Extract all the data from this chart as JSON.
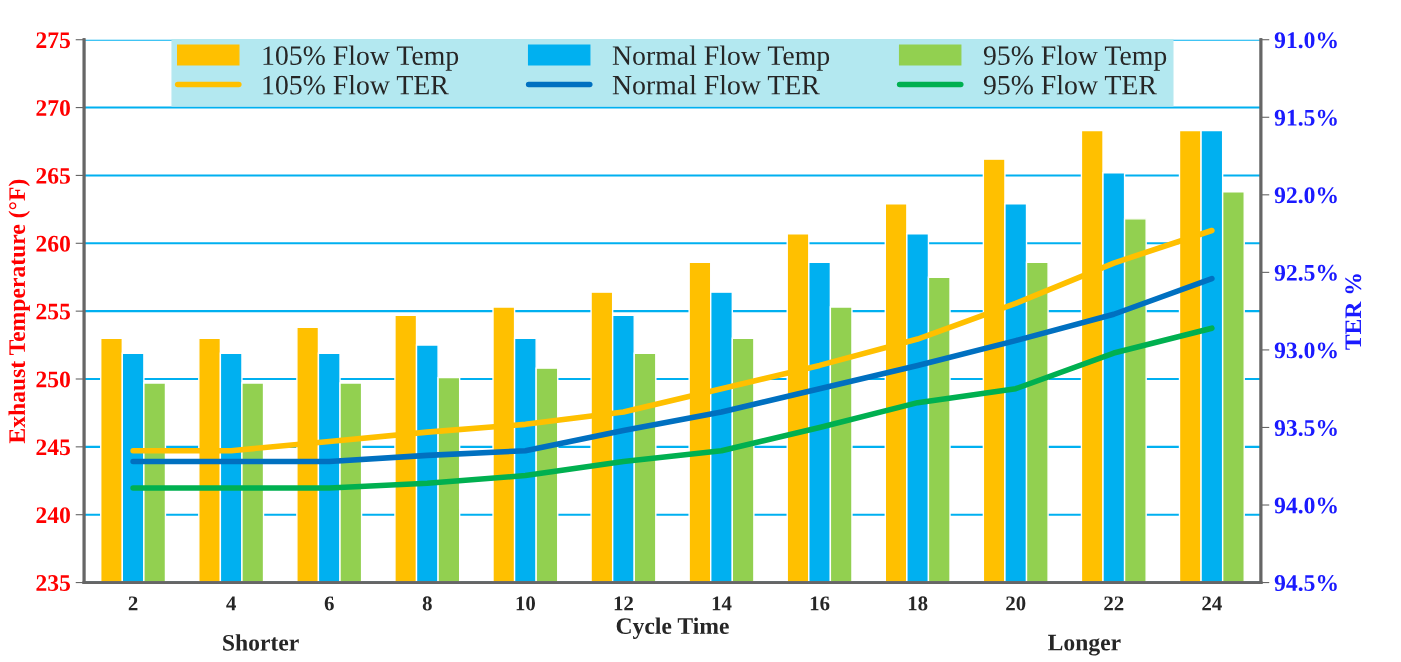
{
  "chart_data": {
    "type": "bar",
    "categories": [
      "2",
      "4",
      "6",
      "8",
      "10",
      "12",
      "14",
      "16",
      "18",
      "20",
      "22",
      "24"
    ],
    "series": [
      {
        "name": "105% Flow Temp",
        "color": "#ffc000",
        "values": [
          253.0,
          253.0,
          253.8,
          254.7,
          255.3,
          256.4,
          258.6,
          260.7,
          262.9,
          266.2,
          268.3,
          268.3
        ]
      },
      {
        "name": "Normal Flow Temp",
        "color": "#00b0f0",
        "values": [
          251.9,
          251.9,
          251.9,
          252.5,
          253.0,
          254.7,
          256.4,
          258.6,
          260.7,
          262.9,
          265.2,
          268.3
        ]
      },
      {
        "name": "95% Flow Temp",
        "color": "#92d050",
        "values": [
          249.7,
          249.7,
          249.7,
          250.1,
          250.8,
          251.9,
          253.0,
          255.3,
          257.5,
          258.6,
          261.8,
          263.8
        ]
      },
      {
        "name": "105% Flow TER",
        "type": "line",
        "axis": "y2",
        "color": "#ffc000",
        "values": [
          93.65,
          93.65,
          93.59,
          93.53,
          93.48,
          93.4,
          93.25,
          93.1,
          92.93,
          92.7,
          92.44,
          92.23
        ]
      },
      {
        "name": "Normal Flow TER",
        "type": "line",
        "axis": "y2",
        "color": "#0070c0",
        "values": [
          93.72,
          93.72,
          93.72,
          93.68,
          93.65,
          93.52,
          93.4,
          93.25,
          93.1,
          92.94,
          92.77,
          92.54
        ]
      },
      {
        "name": "95% Flow TER",
        "type": "line",
        "axis": "y2",
        "color": "#00b050",
        "values": [
          93.89,
          93.89,
          93.89,
          93.86,
          93.81,
          93.72,
          93.65,
          93.5,
          93.34,
          93.25,
          93.02,
          92.86
        ]
      }
    ],
    "xlabel": "Cycle Time",
    "ylabel": "Exhaust Temperature (°F)",
    "y2label": "TER %",
    "annotations": [
      "Shorter",
      "Longer"
    ],
    "ylim": [
      235,
      275
    ],
    "yticks": [
      235,
      240,
      245,
      250,
      255,
      260,
      265,
      270,
      275
    ],
    "y2lim": [
      94.5,
      91.0
    ],
    "y2ticks": [
      {
        "value": 91.0,
        "label": "91.0%"
      },
      {
        "value": 91.5,
        "label": "91.5%"
      },
      {
        "value": 92.0,
        "label": "92.0%"
      },
      {
        "value": 92.5,
        "label": "92.5%"
      },
      {
        "value": 93.0,
        "label": "93.0%"
      },
      {
        "value": 93.5,
        "label": "93.5%"
      },
      {
        "value": 94.0,
        "label": "94.0%"
      },
      {
        "value": 94.5,
        "label": "94.5%"
      }
    ],
    "grid": "y",
    "legend": "top",
    "line_style": "solid",
    "marker": "none"
  }
}
